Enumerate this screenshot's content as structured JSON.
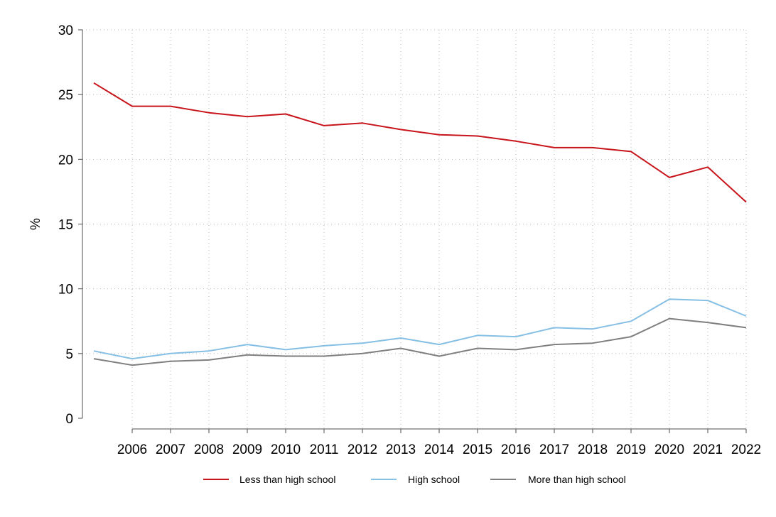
{
  "chart_data": {
    "type": "line",
    "title": "",
    "xlabel": "",
    "ylabel": "%",
    "ylim": [
      0,
      30
    ],
    "xlim": [
      2005,
      2022
    ],
    "yticks": [
      0,
      5,
      10,
      15,
      20,
      25,
      30
    ],
    "xticks": [
      2006,
      2007,
      2008,
      2009,
      2010,
      2011,
      2012,
      2013,
      2014,
      2015,
      2016,
      2017,
      2018,
      2019,
      2020,
      2021,
      2022
    ],
    "grid": true,
    "legend_position": "bottom",
    "x": [
      2005,
      2006,
      2007,
      2008,
      2009,
      2010,
      2011,
      2012,
      2013,
      2014,
      2015,
      2016,
      2017,
      2018,
      2019,
      2020,
      2021,
      2022
    ],
    "series": [
      {
        "name": "Less than high school",
        "color": "#c8141b",
        "values": [
          25.9,
          24.1,
          24.1,
          23.6,
          23.3,
          23.5,
          22.6,
          22.8,
          22.3,
          21.9,
          21.8,
          21.4,
          20.9,
          20.9,
          20.6,
          18.6,
          19.4,
          16.7
        ]
      },
      {
        "name": "High school",
        "color": "#86bfe4",
        "values": [
          5.2,
          4.6,
          5.0,
          5.2,
          5.7,
          5.3,
          5.6,
          5.8,
          6.2,
          5.7,
          6.4,
          6.3,
          7.0,
          6.9,
          7.5,
          9.2,
          9.1,
          7.9
        ]
      },
      {
        "name": "More than high school",
        "color": "#7f7f7f",
        "values": [
          4.6,
          4.1,
          4.4,
          4.5,
          4.9,
          4.8,
          4.8,
          5.0,
          5.4,
          4.8,
          5.4,
          5.3,
          5.7,
          5.8,
          6.3,
          7.7,
          7.4,
          7.0
        ]
      }
    ]
  }
}
